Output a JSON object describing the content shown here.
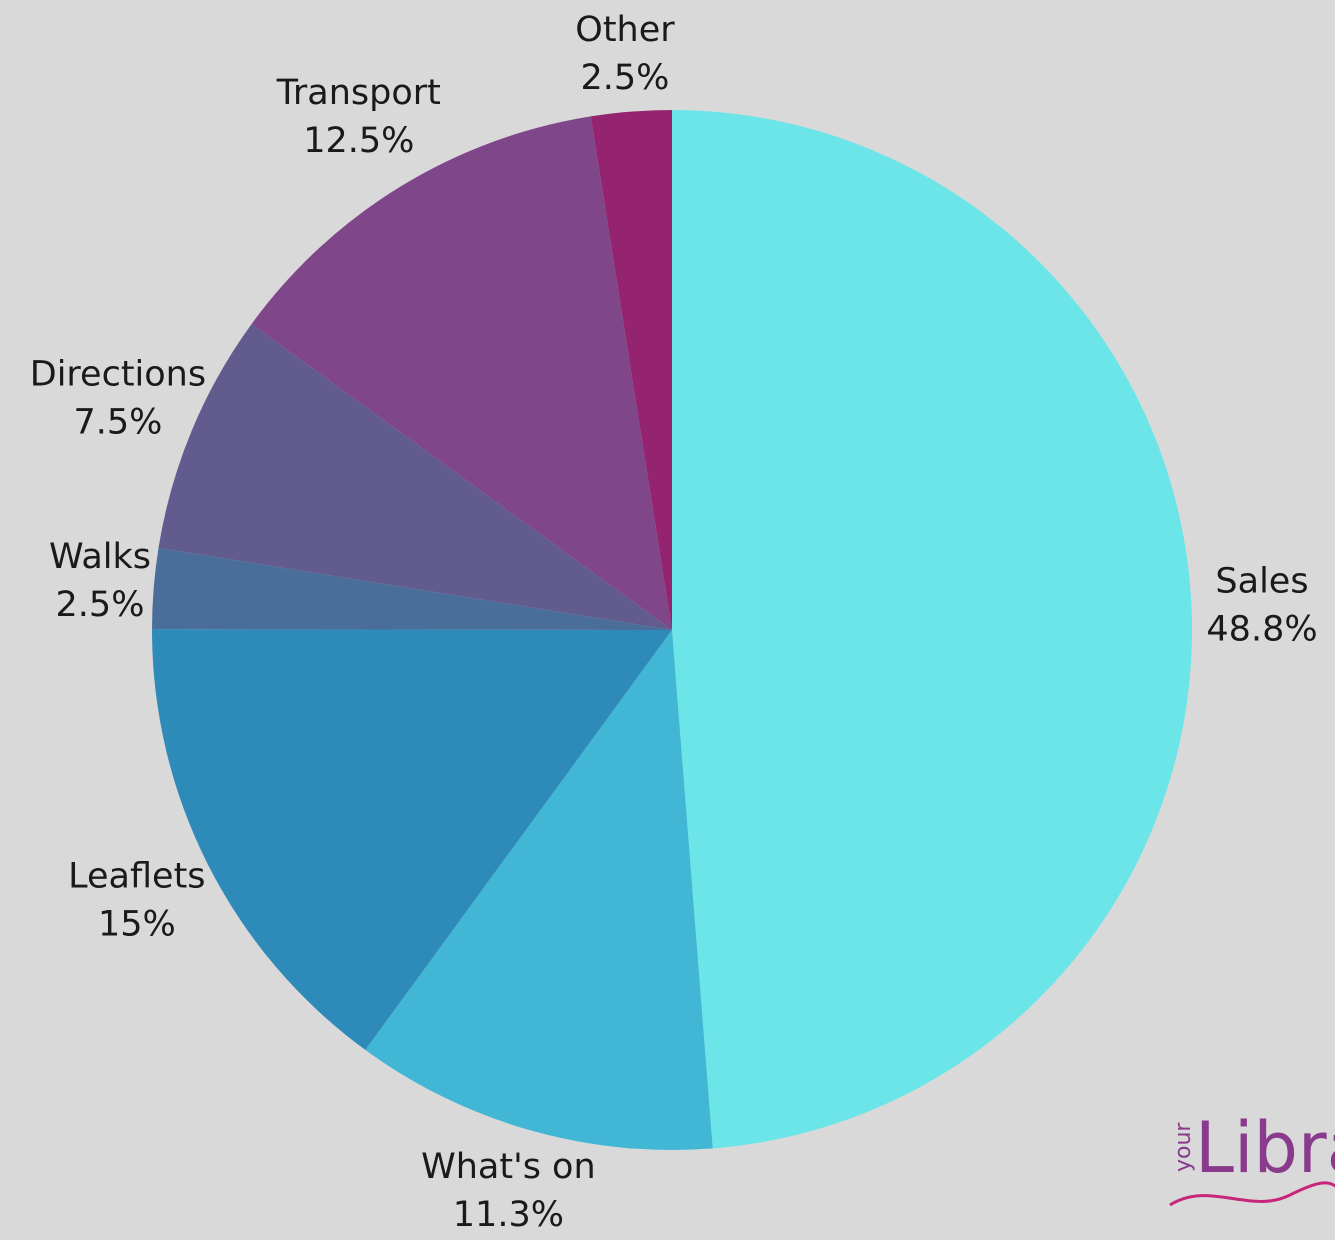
{
  "chart_data": {
    "type": "pie",
    "categories": [
      "Sales",
      "What's on",
      "Leaflets",
      "Walks",
      "Directions",
      "Transport",
      "Other"
    ],
    "values": [
      48.8,
      11.3,
      15,
      2.5,
      7.5,
      12.5,
      2.5
    ],
    "value_labels": [
      "48.8%",
      "11.3%",
      "15%",
      "2.5%",
      "7.5%",
      "12.5%",
      "2.5%"
    ],
    "colors": [
      "#6ce5e8",
      "#42b6d5",
      "#2e8bb9",
      "#4a6e9a",
      "#625b8e",
      "#7f4689",
      "#952470"
    ]
  },
  "logo": {
    "small": "your",
    "main": "Libra"
  }
}
